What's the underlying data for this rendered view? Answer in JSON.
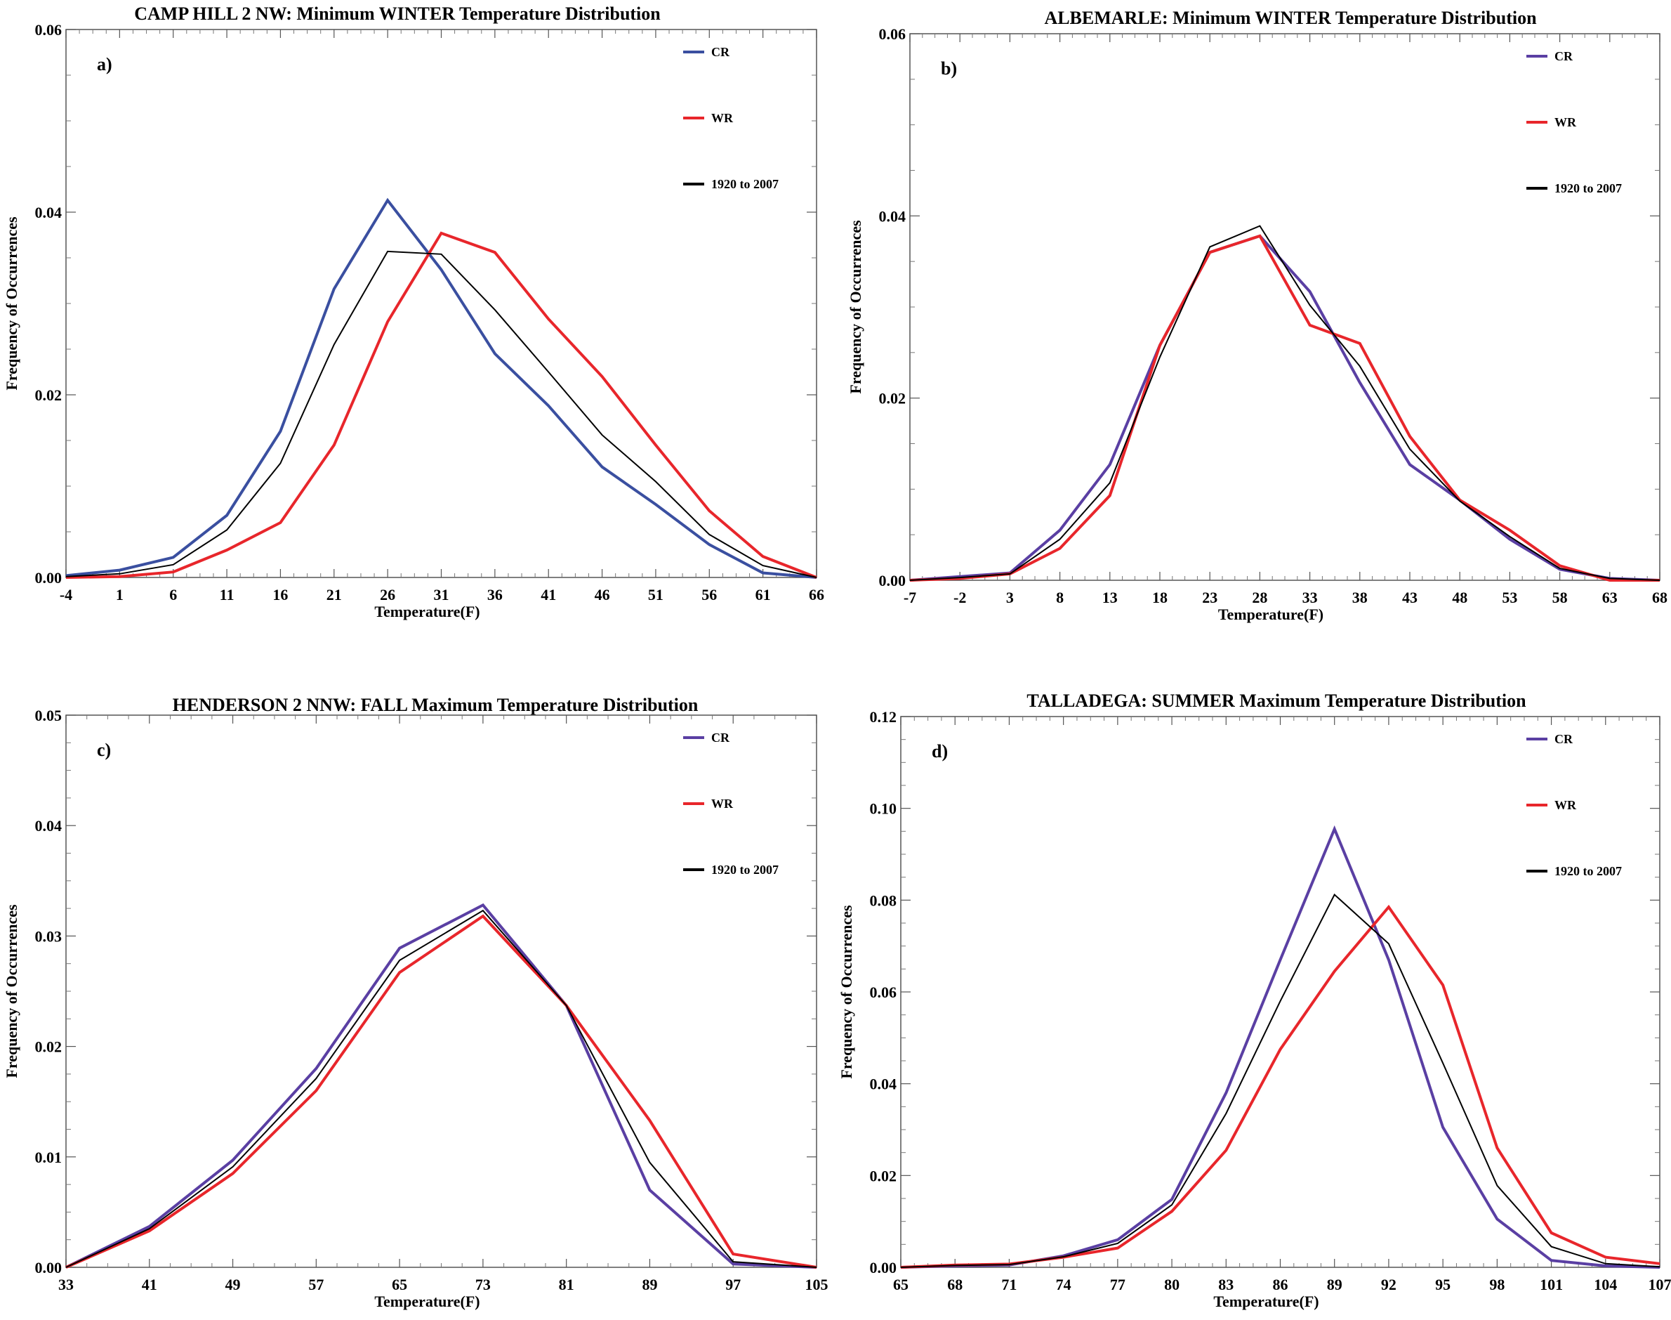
{
  "figure": {
    "colors": {
      "CR": "#3a4fa0",
      "WR": "#e8262b",
      "all": "#000000",
      "crPurple": "#5a3fa3"
    }
  },
  "chart_data": [
    {
      "type": "line",
      "title": "CAMP HILL 2 NW: Minimum WINTER Temperature Distribution",
      "panel_label": "a)",
      "xlabel": "Temperature(F)",
      "ylabel": "Frequency of Occurrences",
      "x": [
        -4,
        1,
        6,
        11,
        16,
        21,
        26,
        31,
        36,
        41,
        46,
        51,
        56,
        61,
        66
      ],
      "xticks": [
        "-4",
        "1",
        "6",
        "11",
        "16",
        "21",
        "26",
        "31",
        "36",
        "41",
        "46",
        "51",
        "56",
        "61",
        "66"
      ],
      "ylim": [
        0,
        0.06
      ],
      "yticks": [
        0,
        0.02,
        0.04,
        0.06
      ],
      "ytick_labels": [
        "0.00",
        "0.02",
        "0.04",
        "0.06"
      ],
      "legend_position": "top-right",
      "series": [
        {
          "name": "CR",
          "color": "#3a4fa0",
          "width": 4,
          "values": [
            0.0002,
            0.0008,
            0.0022,
            0.0068,
            0.016,
            0.0316,
            0.0413,
            0.0337,
            0.0245,
            0.0188,
            0.0121,
            0.008,
            0.0036,
            0.0005,
            0.0
          ]
        },
        {
          "name": "WR",
          "color": "#e8262b",
          "width": 4,
          "values": [
            0.0,
            0.0001,
            0.0006,
            0.003,
            0.006,
            0.0145,
            0.028,
            0.0377,
            0.0356,
            0.0283,
            0.022,
            0.0145,
            0.0073,
            0.0023,
            0.0
          ]
        },
        {
          "name": "1920 to 2007",
          "color": "#000000",
          "width": 2,
          "values": [
            0.0001,
            0.0004,
            0.0014,
            0.0052,
            0.0125,
            0.0255,
            0.0357,
            0.0354,
            0.0293,
            0.0225,
            0.0156,
            0.0105,
            0.0047,
            0.0013,
            0.0
          ]
        }
      ]
    },
    {
      "type": "line",
      "title": "ALBEMARLE: Minimum WINTER Temperature Distribution",
      "panel_label": "b)",
      "xlabel": "Temperature(F)",
      "ylabel": "Frequency of Occurrences",
      "x": [
        -7,
        -2,
        3,
        8,
        13,
        18,
        23,
        28,
        33,
        38,
        43,
        48,
        53,
        58,
        63,
        68
      ],
      "xticks": [
        "-7",
        "-2",
        "3",
        "8",
        "13",
        "18",
        "23",
        "28",
        "33",
        "38",
        "43",
        "48",
        "53",
        "58",
        "63",
        "68"
      ],
      "ylim": [
        0,
        0.06
      ],
      "yticks": [
        0,
        0.02,
        0.04,
        0.06
      ],
      "ytick_labels": [
        "0.00",
        "0.02",
        "0.04",
        "0.06"
      ],
      "legend_position": "top-right",
      "series": [
        {
          "name": "CR",
          "color": "#5a3fa3",
          "width": 4,
          "values": [
            0.0,
            0.0004,
            0.0008,
            0.0055,
            0.0127,
            0.0258,
            0.036,
            0.0378,
            0.0317,
            0.0217,
            0.0127,
            0.0088,
            0.0045,
            0.0012,
            0.0002,
            0.0
          ]
        },
        {
          "name": "WR",
          "color": "#e8262b",
          "width": 4,
          "values": [
            0.0,
            0.0002,
            0.0007,
            0.0035,
            0.0093,
            0.0258,
            0.036,
            0.0378,
            0.028,
            0.026,
            0.0158,
            0.0088,
            0.0055,
            0.0016,
            0.0,
            0.0
          ]
        },
        {
          "name": "1920 to 2007",
          "color": "#000000",
          "width": 2,
          "values": [
            0.0,
            0.0003,
            0.0007,
            0.0045,
            0.0107,
            0.0245,
            0.0366,
            0.0389,
            0.0302,
            0.0235,
            0.0144,
            0.0087,
            0.0048,
            0.0013,
            0.0002,
            0.0
          ]
        }
      ]
    },
    {
      "type": "line",
      "title": "HENDERSON 2 NNW: FALL Maximum Temperature Distribution",
      "panel_label": "c)",
      "xlabel": "Temperature(F)",
      "ylabel": "Frequency of Occurrences",
      "x": [
        33,
        41,
        49,
        57,
        65,
        73,
        81,
        89,
        97,
        105
      ],
      "xticks": [
        "33",
        "41",
        "49",
        "57",
        "65",
        "73",
        "81",
        "89",
        "97",
        "105"
      ],
      "ylim": [
        0,
        0.05
      ],
      "yticks": [
        0,
        0.01,
        0.02,
        0.03,
        0.04,
        0.05
      ],
      "ytick_labels": [
        "0.00",
        "0.01",
        "0.02",
        "0.03",
        "0.04",
        "0.05"
      ],
      "legend_position": "top-right",
      "series": [
        {
          "name": "CR",
          "color": "#5a3fa3",
          "width": 4,
          "values": [
            0.0,
            0.0037,
            0.0097,
            0.018,
            0.0289,
            0.0328,
            0.0237,
            0.007,
            0.0003,
            0.0
          ]
        },
        {
          "name": "WR",
          "color": "#e8262b",
          "width": 4,
          "values": [
            0.0,
            0.0033,
            0.0085,
            0.016,
            0.0267,
            0.0318,
            0.0237,
            0.0133,
            0.0012,
            0.0
          ]
        },
        {
          "name": "1920 to 2007",
          "color": "#000000",
          "width": 2,
          "values": [
            0.0,
            0.0035,
            0.0091,
            0.0171,
            0.0278,
            0.0323,
            0.0237,
            0.0095,
            0.0005,
            0.0
          ]
        }
      ]
    },
    {
      "type": "line",
      "title": "TALLADEGA: SUMMER Maximum Temperature Distribution",
      "panel_label": "d)",
      "xlabel": "Temperature(F)",
      "ylabel": "Frequency of Occurrences",
      "x": [
        65,
        68,
        71,
        74,
        77,
        80,
        83,
        86,
        89,
        92,
        95,
        98,
        101,
        104,
        107
      ],
      "xticks": [
        "65",
        "68",
        "71",
        "74",
        "77",
        "80",
        "83",
        "86",
        "89",
        "92",
        "95",
        "98",
        "101",
        "104",
        "107"
      ],
      "ylim": [
        0,
        0.12
      ],
      "yticks": [
        0,
        0.02,
        0.04,
        0.06,
        0.08,
        0.1,
        0.12
      ],
      "ytick_labels": [
        "0.00",
        "0.02",
        "0.04",
        "0.06",
        "0.08",
        "0.10",
        "0.12"
      ],
      "legend_position": "top-right",
      "series": [
        {
          "name": "CR",
          "color": "#5a3fa3",
          "width": 4,
          "values": [
            0.0,
            0.0003,
            0.0005,
            0.0025,
            0.006,
            0.0148,
            0.038,
            0.067,
            0.0955,
            0.067,
            0.0305,
            0.0105,
            0.0015,
            0.0003,
            0.0
          ]
        },
        {
          "name": "WR",
          "color": "#e8262b",
          "width": 4,
          "values": [
            0.0,
            0.0005,
            0.0007,
            0.0022,
            0.0042,
            0.0122,
            0.0255,
            0.0475,
            0.0645,
            0.0785,
            0.0615,
            0.026,
            0.0075,
            0.0022,
            0.0008
          ]
        },
        {
          "name": "1920 to 2007",
          "color": "#000000",
          "width": 2,
          "values": [
            0.0,
            0.0004,
            0.0006,
            0.0023,
            0.0052,
            0.0136,
            0.0335,
            0.058,
            0.0812,
            0.0705,
            0.0445,
            0.0178,
            0.0045,
            0.0008,
            0.0001
          ]
        }
      ]
    }
  ]
}
